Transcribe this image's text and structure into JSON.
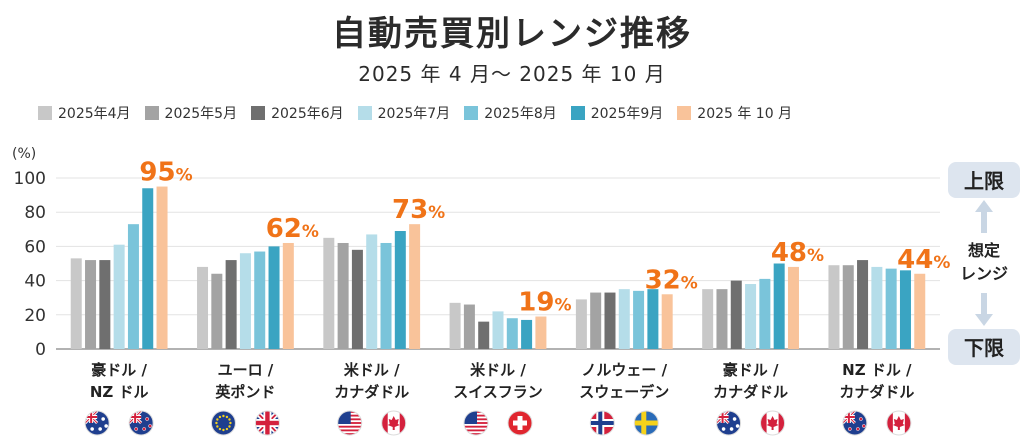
{
  "title": "自動売買別レンジ推移",
  "subtitle": "2025 年 4 月～ 2025 年 10 月",
  "unit_label": "(%)",
  "side": {
    "upper": "上限",
    "middle_line1": "想定",
    "middle_line2": "レンジ",
    "lower": "下限"
  },
  "colors": {
    "series": [
      "#c8c8c8",
      "#a3a3a3",
      "#6f6f6f",
      "#b5dde9",
      "#7ac4da",
      "#3aa4c2",
      "#f9c39a"
    ],
    "peak_label": "#f07318",
    "arrow": "#c9d6e4"
  },
  "chart_data": {
    "type": "bar",
    "title": "自動売買別レンジ推移",
    "subtitle": "2025 年 4 月～ 2025 年 10 月",
    "ylabel": "(%)",
    "ylim": [
      0,
      100
    ],
    "yticks": [
      0,
      20,
      40,
      60,
      80,
      100
    ],
    "grid": true,
    "categories": [
      {
        "line1": "豪ドル /",
        "line2": "NZ ドル",
        "flags": [
          "au-flag",
          "nz-flag"
        ]
      },
      {
        "line1": "ユーロ /",
        "line2": "英ポンド",
        "flags": [
          "eu-flag",
          "uk-flag"
        ]
      },
      {
        "line1": "米ドル /",
        "line2": "カナダドル",
        "flags": [
          "us-flag",
          "ca-flag"
        ]
      },
      {
        "line1": "米ドル /",
        "line2": "スイスフラン",
        "flags": [
          "us-flag",
          "ch-flag"
        ]
      },
      {
        "line1": "ノルウェー /",
        "line2": "スウェーデン",
        "flags": [
          "no-flag",
          "se-flag"
        ]
      },
      {
        "line1": "豪ドル /",
        "line2": "カナダドル",
        "flags": [
          "au-flag",
          "ca-flag"
        ]
      },
      {
        "line1": "NZ ドル /",
        "line2": "カナダドル",
        "flags": [
          "nz-flag",
          "ca-flag"
        ]
      }
    ],
    "series": [
      {
        "name": "2025年4月",
        "values": [
          53,
          48,
          65,
          27,
          29,
          35,
          49
        ]
      },
      {
        "name": "2025年5月",
        "values": [
          52,
          44,
          62,
          26,
          33,
          35,
          49
        ]
      },
      {
        "name": "2025年6月",
        "values": [
          52,
          52,
          58,
          16,
          33,
          40,
          52
        ]
      },
      {
        "name": "2025年7月",
        "values": [
          61,
          56,
          67,
          22,
          35,
          38,
          48
        ]
      },
      {
        "name": "2025年8月",
        "values": [
          73,
          57,
          62,
          18,
          34,
          41,
          47
        ]
      },
      {
        "name": "2025年9月",
        "values": [
          94,
          60,
          69,
          17,
          35,
          50,
          46
        ]
      },
      {
        "name": "2025 年 10 月",
        "values": [
          95,
          62,
          73,
          19,
          32,
          48,
          44
        ]
      }
    ],
    "peak_labels": [
      {
        "value": "95",
        "suffix": "%"
      },
      {
        "value": "62",
        "suffix": "%"
      },
      {
        "value": "73",
        "suffix": "%"
      },
      {
        "value": "19",
        "suffix": "%"
      },
      {
        "value": "32",
        "suffix": "%"
      },
      {
        "value": "48",
        "suffix": "%"
      },
      {
        "value": "44",
        "suffix": "%"
      }
    ]
  }
}
